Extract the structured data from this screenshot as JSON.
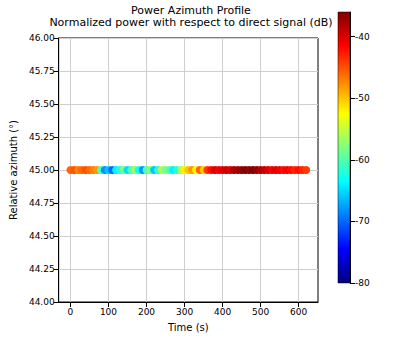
{
  "chart_data": {
    "type": "scatter",
    "title": "Power Azimuth Profile",
    "subtitle": "Normalized power with respect to direct signal (dB)",
    "x_label": "Time (s)",
    "y_label": "Relative azimuth (°)",
    "marker": "circle",
    "grid": true,
    "x": [
      0,
      10,
      20,
      30,
      40,
      50,
      60,
      70,
      80,
      90,
      100,
      110,
      120,
      130,
      140,
      150,
      160,
      170,
      180,
      190,
      200,
      210,
      220,
      230,
      240,
      250,
      260,
      270,
      280,
      290,
      300,
      310,
      320,
      330,
      340,
      350,
      360,
      370,
      380,
      390,
      400,
      410,
      420,
      430,
      440,
      450,
      460,
      470,
      480,
      490,
      500,
      510,
      520,
      530,
      540,
      550,
      560,
      570,
      580,
      590,
      600,
      610,
      620
    ],
    "y": [
      45,
      45,
      45,
      45,
      45,
      45,
      45,
      45,
      45,
      45,
      45,
      45,
      45,
      45,
      45,
      45,
      45,
      45,
      45,
      45,
      45,
      45,
      45,
      45,
      45,
      45,
      45,
      45,
      45,
      45,
      45,
      45,
      45,
      45,
      45,
      45,
      45,
      45,
      45,
      45,
      45,
      45,
      45,
      45,
      45,
      45,
      45,
      45,
      45,
      45,
      45,
      45,
      45,
      45,
      45,
      45,
      45,
      45,
      45,
      45,
      45,
      45,
      45
    ],
    "power": [
      -46,
      -45,
      -47,
      -46,
      -45,
      -46,
      -47,
      -48,
      -60,
      -68,
      -66,
      -70,
      -64,
      -62,
      -58,
      -65,
      -60,
      -57,
      -63,
      -68,
      -60,
      -58,
      -66,
      -62,
      -56,
      -58,
      -60,
      -64,
      -62,
      -56,
      -52,
      -50,
      -48,
      -52,
      -46,
      -50,
      -44,
      -42,
      -40,
      -41,
      -40,
      -39,
      -40,
      -38,
      -38,
      -37,
      -36,
      -37,
      -36,
      -37,
      -38,
      -39,
      -40,
      -41,
      -40,
      -41,
      -42,
      -41,
      -42,
      -43,
      -42,
      -43,
      -44
    ],
    "xlim": [
      -31,
      651
    ],
    "xticks": [
      0,
      100,
      200,
      300,
      400,
      500,
      600
    ],
    "ylim": [
      44,
      46
    ],
    "yticks": [
      {
        "value": 44,
        "label": "44.00"
      },
      {
        "value": 44.25,
        "label": "44.25"
      },
      {
        "value": 44.5,
        "label": "44.50"
      },
      {
        "value": 44.75,
        "label": "44.75"
      },
      {
        "value": 45,
        "label": "45.00"
      },
      {
        "value": 45.25,
        "label": "45.25"
      },
      {
        "value": 45.5,
        "label": "45.50"
      },
      {
        "value": 45.75,
        "label": "45.75"
      },
      {
        "value": 46,
        "label": "46.00"
      }
    ],
    "colorbar": {
      "range": [
        -80,
        -36
      ],
      "ticks": [
        -80,
        -70,
        -60,
        -50,
        -40
      ]
    }
  }
}
